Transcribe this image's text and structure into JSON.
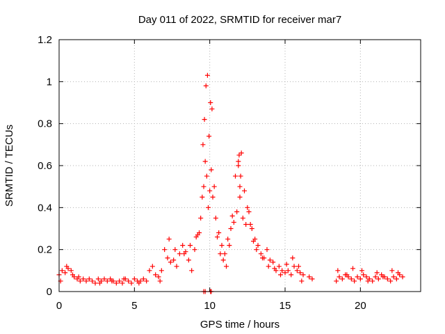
{
  "chart_data": {
    "type": "scatter",
    "title": "Day 011 of 2022, SRMTID for receiver mar7",
    "xlabel": "GPS time / hours",
    "ylabel": "SRMTID / TECUs",
    "xlim": [
      0,
      24
    ],
    "ylim": [
      0,
      1.2
    ],
    "x_ticks": [
      0,
      5,
      10,
      15,
      20
    ],
    "x_tick_labels": [
      "0",
      "5",
      "10",
      "15",
      "20"
    ],
    "y_ticks": [
      0,
      0.2,
      0.4,
      0.6,
      0.8,
      1,
      1.2
    ],
    "y_tick_labels": [
      "0",
      "0.2",
      "0.4",
      "0.6",
      "0.8",
      "1",
      "1.2"
    ],
    "grid": true,
    "marker": "+",
    "series": [
      {
        "name": "SRMTID",
        "color": "#ff0000",
        "x": [
          0.0,
          0.2,
          0.4,
          0.6,
          0.8,
          1.0,
          1.2,
          1.4,
          1.6,
          1.8,
          2.0,
          2.2,
          2.4,
          2.6,
          2.8,
          3.0,
          3.2,
          3.4,
          3.6,
          3.8,
          4.0,
          4.2,
          4.4,
          4.6,
          4.8,
          5.0,
          5.2,
          5.4,
          5.6,
          5.8,
          6.0,
          6.2,
          6.4,
          6.6,
          6.8,
          7.0,
          7.2,
          7.4,
          7.6,
          7.8,
          8.0,
          8.2,
          8.4,
          8.6,
          8.8,
          9.0,
          9.2,
          9.4,
          9.5,
          9.6,
          9.7,
          9.8,
          9.9,
          10.0,
          10.1,
          10.2,
          10.4,
          10.6,
          10.8,
          11.0,
          11.2,
          11.4,
          11.6,
          11.8,
          12.0,
          12.2,
          12.4,
          12.6,
          12.8,
          13.0,
          13.2,
          13.4,
          13.6,
          13.8,
          14.0,
          14.2,
          14.4,
          14.6,
          14.8,
          15.0,
          15.2,
          15.4,
          15.6,
          15.8,
          16.0,
          16.2,
          16.6,
          16.8,
          18.4,
          18.6,
          18.8,
          19.0,
          19.2,
          19.4,
          19.6,
          19.8,
          20.0,
          20.2,
          20.4,
          20.6,
          20.8,
          21.0,
          21.2,
          21.4,
          21.6,
          21.8,
          22.0,
          22.2,
          22.4,
          22.6,
          22.8,
          0.1,
          0.5,
          0.9,
          1.3,
          2.7,
          3.5,
          4.3,
          5.3,
          6.7,
          7.3,
          7.7,
          8.3,
          8.7,
          9.1,
          9.3,
          9.55,
          9.65,
          9.75,
          9.85,
          9.95,
          10.05,
          10.15,
          10.3,
          10.5,
          10.7,
          10.9,
          11.1,
          11.3,
          11.5,
          11.7,
          11.9,
          12.1,
          12.3,
          12.5,
          12.7,
          12.9,
          13.1,
          13.5,
          13.9,
          14.3,
          14.7,
          15.1,
          15.5,
          15.9,
          16.1,
          18.5,
          19.1,
          19.5,
          20.1,
          20.5,
          21.1,
          21.5,
          22.1,
          22.5,
          9.6,
          9.7,
          10.05,
          10.1,
          11.9,
          11.95,
          12.0,
          12.05
        ],
        "y": [
          0.08,
          0.1,
          0.09,
          0.11,
          0.1,
          0.07,
          0.06,
          0.05,
          0.06,
          0.05,
          0.06,
          0.05,
          0.04,
          0.06,
          0.05,
          0.06,
          0.05,
          0.06,
          0.05,
          0.04,
          0.05,
          0.04,
          0.06,
          0.05,
          0.04,
          0.06,
          0.05,
          0.05,
          0.06,
          0.05,
          0.1,
          0.12,
          0.08,
          0.07,
          0.1,
          0.2,
          0.16,
          0.14,
          0.15,
          0.12,
          0.18,
          0.22,
          0.19,
          0.15,
          0.1,
          0.2,
          0.27,
          0.35,
          0.45,
          0.5,
          0.62,
          0.55,
          0.4,
          0.48,
          0.58,
          0.45,
          0.35,
          0.28,
          0.22,
          0.18,
          0.25,
          0.3,
          0.33,
          0.38,
          0.45,
          0.35,
          0.32,
          0.38,
          0.3,
          0.25,
          0.22,
          0.18,
          0.16,
          0.2,
          0.15,
          0.14,
          0.1,
          0.12,
          0.1,
          0.09,
          0.1,
          0.08,
          0.12,
          0.1,
          0.09,
          0.08,
          0.07,
          0.06,
          0.05,
          0.07,
          0.06,
          0.08,
          0.07,
          0.06,
          0.05,
          0.07,
          0.06,
          0.08,
          0.07,
          0.06,
          0.05,
          0.07,
          0.06,
          0.08,
          0.07,
          0.06,
          0.05,
          0.07,
          0.06,
          0.08,
          0.07,
          0.05,
          0.12,
          0.08,
          0.07,
          0.04,
          0.05,
          0.06,
          0.04,
          0.05,
          0.25,
          0.2,
          0.18,
          0.22,
          0.26,
          0.28,
          0.7,
          0.82,
          0.98,
          1.03,
          0.74,
          0.9,
          0.87,
          0.5,
          0.26,
          0.18,
          0.15,
          0.12,
          0.22,
          0.36,
          0.55,
          0.62,
          0.66,
          0.48,
          0.4,
          0.32,
          0.24,
          0.2,
          0.16,
          0.12,
          0.11,
          0.08,
          0.13,
          0.16,
          0.12,
          0.05,
          0.1,
          0.08,
          0.11,
          0.1,
          0.05,
          0.09,
          0.07,
          0.1,
          0.09,
          0.0,
          0.0,
          0.0,
          0.0,
          0.6,
          0.65,
          0.5,
          0.55
        ]
      }
    ]
  }
}
